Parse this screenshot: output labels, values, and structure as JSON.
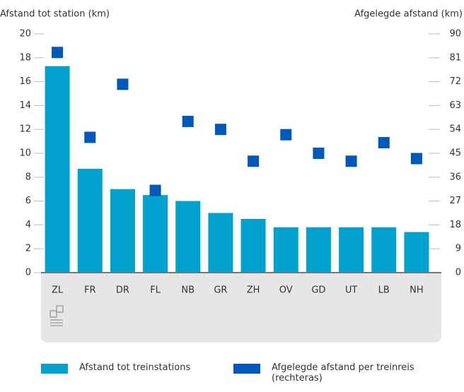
{
  "chart_data": {
    "type": "bar",
    "y_label": "Afstand tot station (km)",
    "y2_label": "Afgelegde afstand (km)",
    "categories": [
      "ZL",
      "FR",
      "DR",
      "FL",
      "NB",
      "GR",
      "ZH",
      "OV",
      "GD",
      "UT",
      "LB",
      "NH"
    ],
    "series": [
      {
        "name": "Afstand tot treinstations",
        "color": "#00a1cd",
        "values": [
          17.3,
          8.7,
          7.0,
          6.5,
          6.0,
          5.0,
          4.5,
          3.8,
          3.8,
          3.8,
          3.8,
          3.4
        ]
      },
      {
        "name": "Afgelegde afstand per treinreis (rechteras)",
        "color": "#0058b8",
        "axis": "y2",
        "marker": "square",
        "values": [
          83,
          51,
          71,
          31,
          57,
          54,
          42,
          52,
          45,
          42,
          49,
          43
        ]
      }
    ],
    "ylim": [
      0,
      20
    ],
    "yticks": [
      0,
      2,
      4,
      6,
      8,
      10,
      12,
      14,
      16,
      18,
      20
    ],
    "y2lim": [
      0,
      90
    ],
    "y2ticks": [
      0,
      9,
      18,
      27,
      36,
      45,
      54,
      63,
      72,
      81,
      90
    ]
  }
}
